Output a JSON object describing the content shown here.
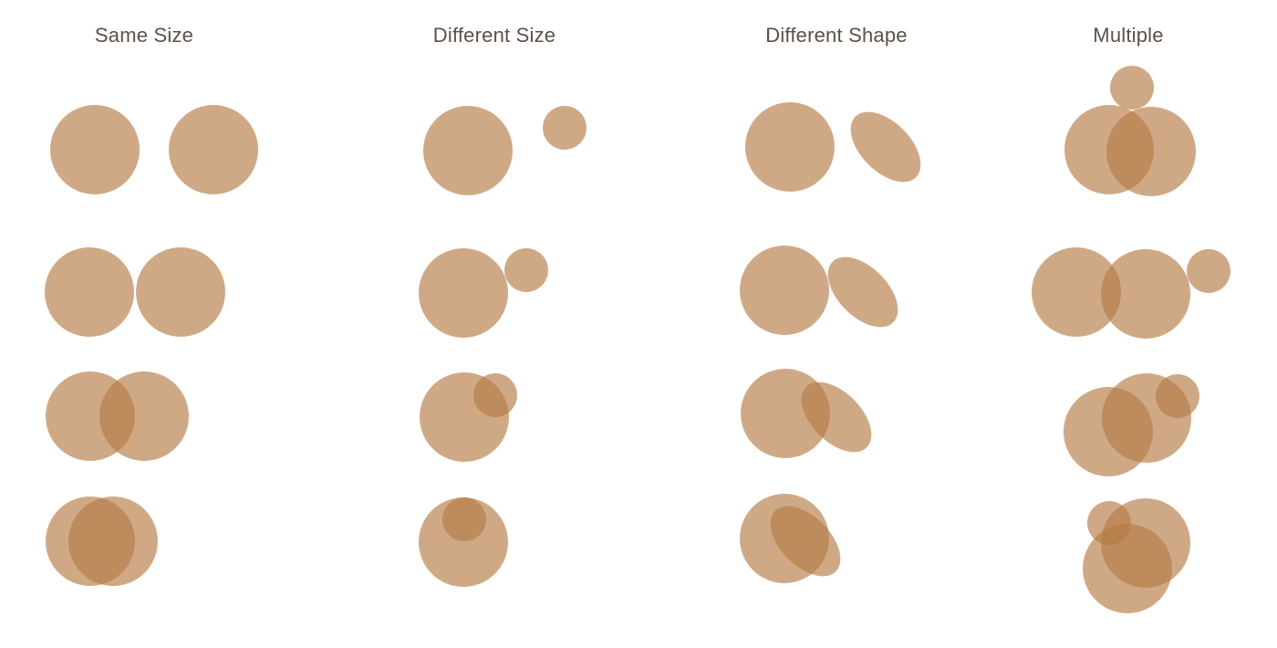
{
  "columns": [
    {
      "title": "Same Size"
    },
    {
      "title": "Different Size"
    },
    {
      "title": "Different Shape"
    },
    {
      "title": "Multiple"
    }
  ],
  "shape_fill_color": "#b57b45",
  "shape_fill_opacity": 0.65
}
